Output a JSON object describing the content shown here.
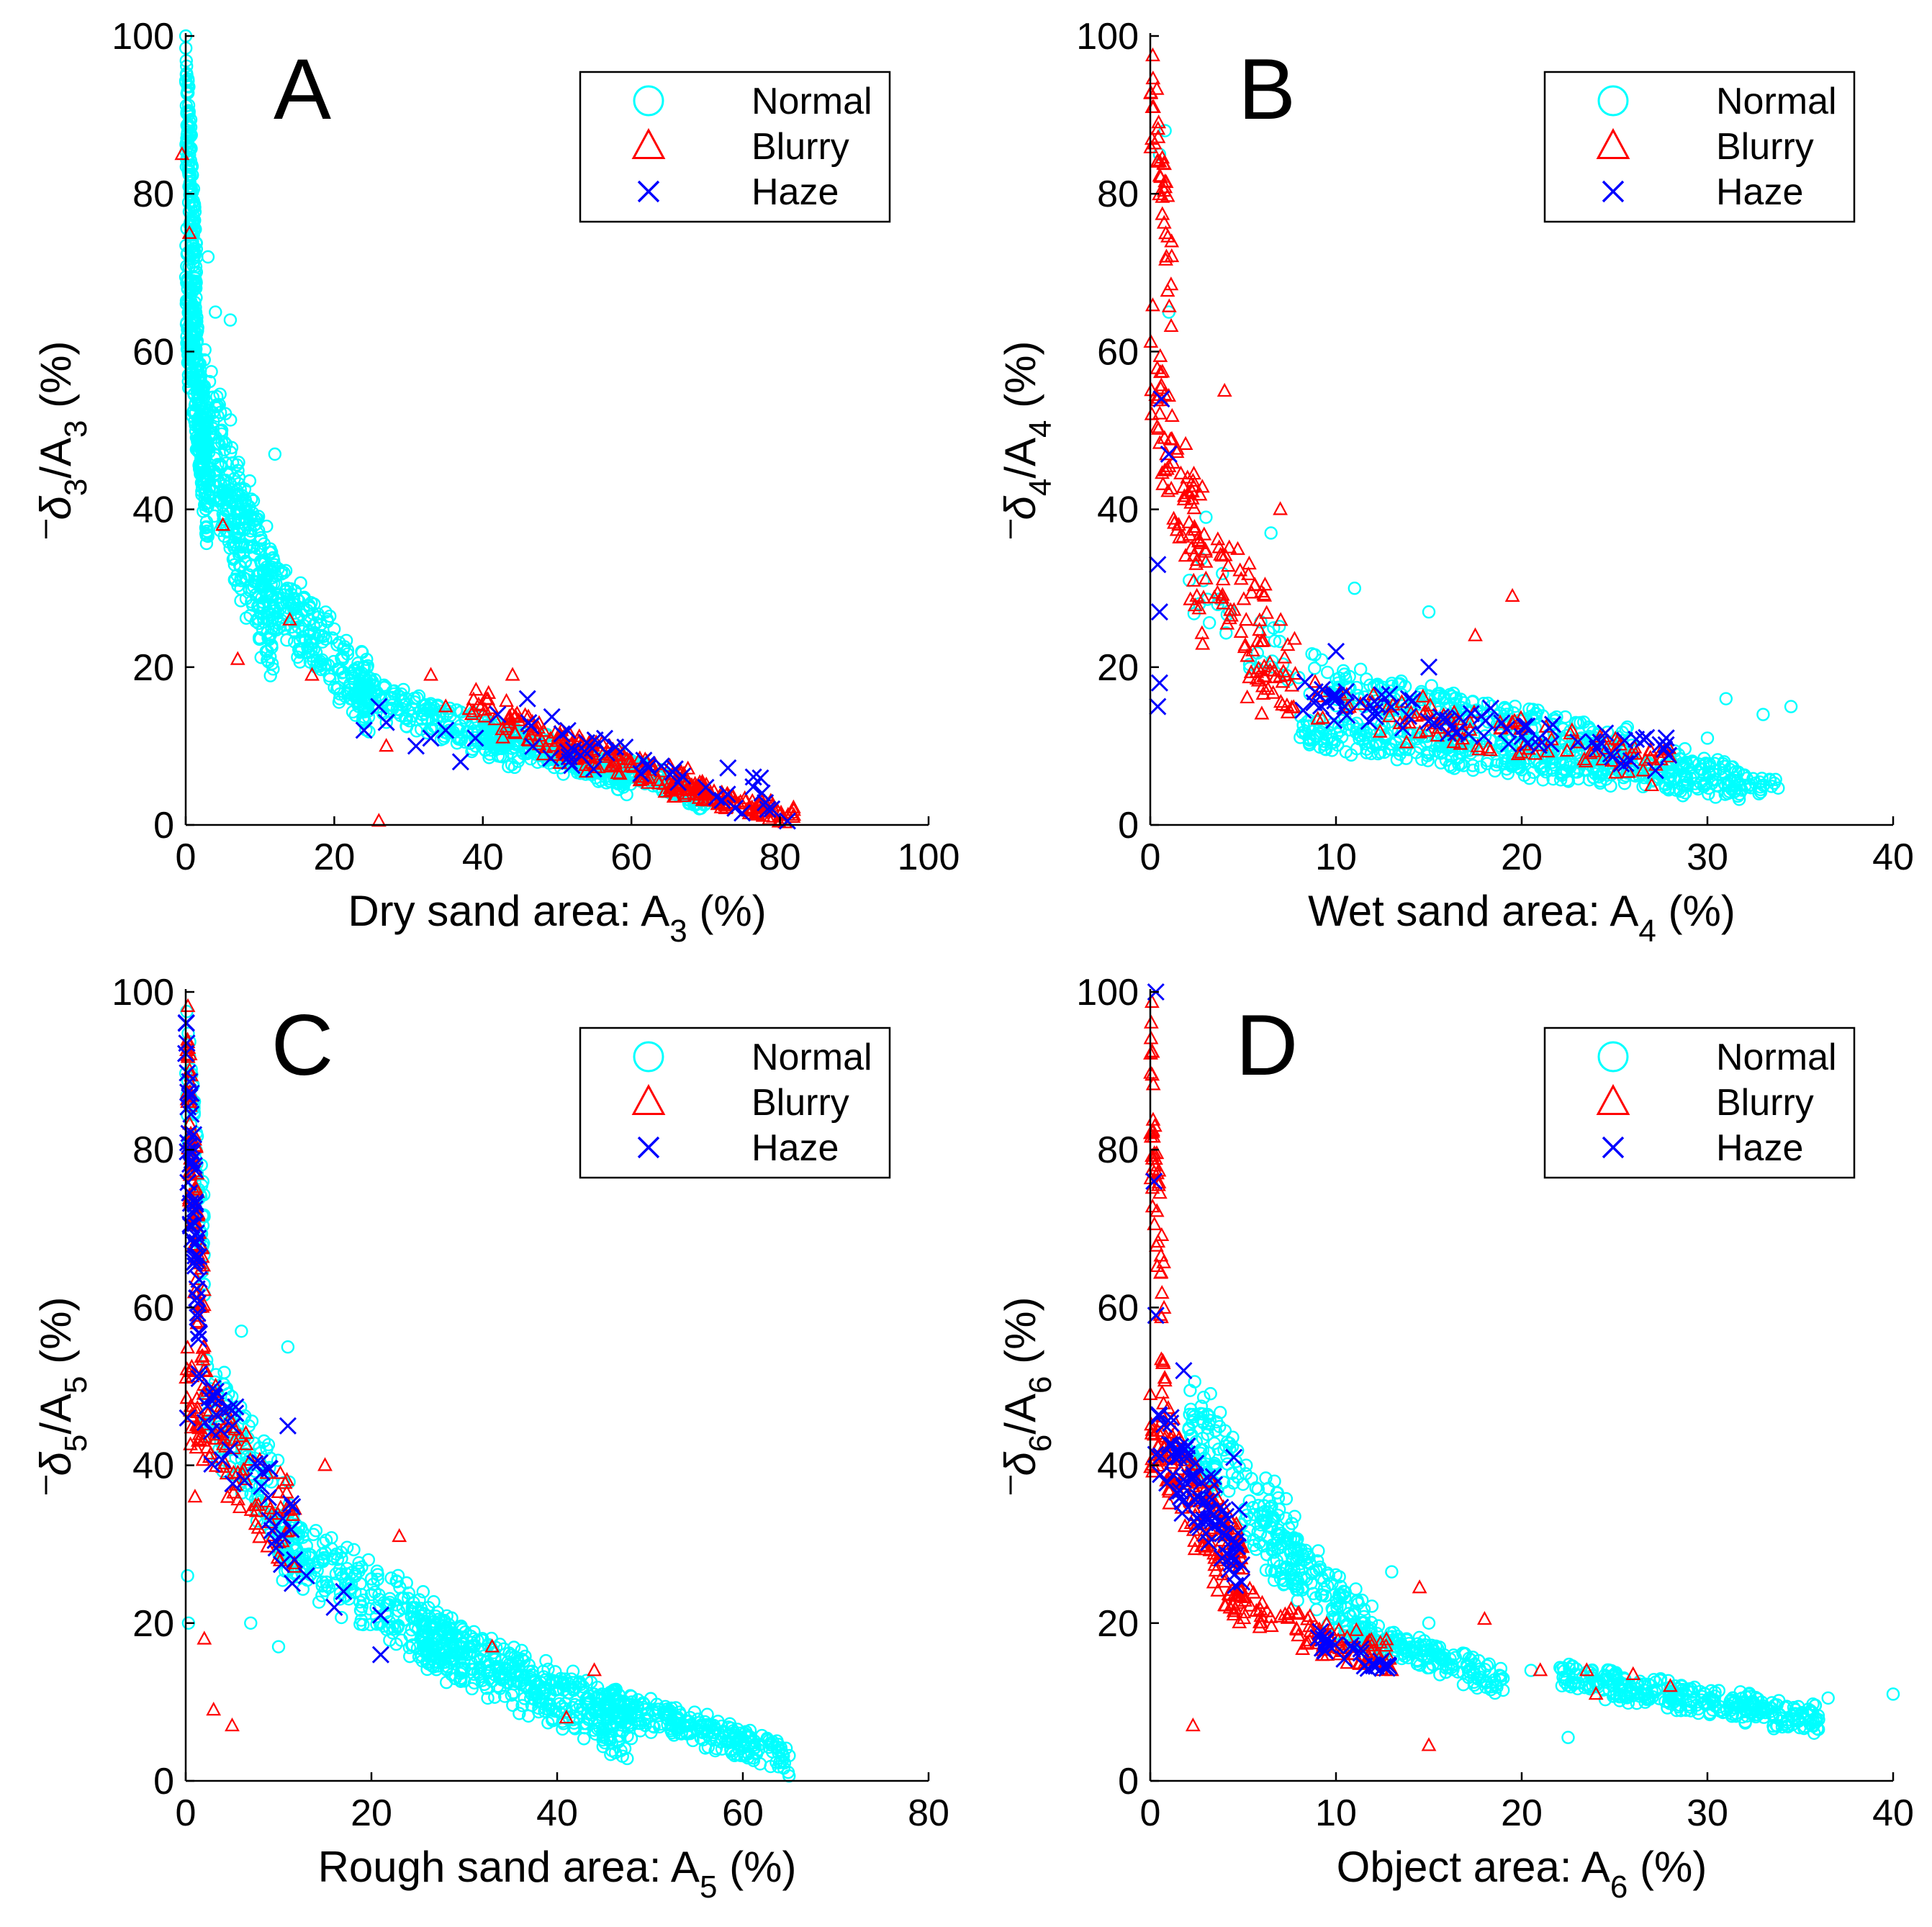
{
  "colors": {
    "normal": "#00ffff",
    "blurry": "#ff0000",
    "haze": "#0000ff",
    "axis": "#000000",
    "background": "#ffffff"
  },
  "legend_labels": [
    "Normal",
    "Blurry",
    "Haze"
  ],
  "chart_data": [
    {
      "panel": "A",
      "type": "scatter",
      "xlabel": {
        "prefix": "Dry sand area: A",
        "sub": "3",
        "suffix": " (%)"
      },
      "ylabel": {
        "sym": "δ",
        "ysub": "3",
        "mid": "/A",
        "sub": "3",
        "suffix": " (%)"
      },
      "xlim": [
        0,
        100
      ],
      "ylim": [
        0,
        100
      ],
      "xticks": [
        0,
        20,
        40,
        60,
        80,
        100
      ],
      "yticks": [
        0,
        20,
        40,
        60,
        80,
        100
      ],
      "legend": "top-right",
      "series": [
        {
          "name": "Normal",
          "marker": "circle",
          "clusters": [
            {
              "x": [
                0,
                1.5
              ],
              "y": [
                60,
                100
              ],
              "n": 150
            },
            {
              "x": [
                0,
                3
              ],
              "y": [
                35,
                75
              ],
              "n": 260
            },
            {
              "x": [
                2,
                12
              ],
              "y": [
                18,
                60
              ],
              "n": 300
            },
            {
              "x": [
                10,
                25
              ],
              "y": [
                12,
                35
              ],
              "n": 220
            },
            {
              "x": [
                22,
                45
              ],
              "y": [
                7,
                20
              ],
              "n": 200
            },
            {
              "x": [
                40,
                60
              ],
              "y": [
                4,
                14
              ],
              "n": 220
            },
            {
              "x": [
                58,
                70
              ],
              "y": [
                2,
                9
              ],
              "n": 120
            }
          ],
          "points": [
            [
              4,
              65
            ],
            [
              12,
              47
            ],
            [
              15,
              26
            ],
            [
              3,
              72
            ],
            [
              6,
              64
            ]
          ]
        },
        {
          "name": "Blurry",
          "marker": "triangle",
          "clusters": [
            {
              "x": [
                38,
                55
              ],
              "y": [
                6,
                18
              ],
              "n": 70
            },
            {
              "x": [
                50,
                70
              ],
              "y": [
                3,
                12
              ],
              "n": 110
            },
            {
              "x": [
                65,
                82
              ],
              "y": [
                0,
                6
              ],
              "n": 100
            }
          ],
          "points": [
            [
              -0.5,
              85
            ],
            [
              0.5,
              75
            ],
            [
              5,
              38
            ],
            [
              14,
              26
            ],
            [
              7,
              21
            ],
            [
              17,
              19
            ],
            [
              26,
              0.5
            ],
            [
              27,
              10
            ],
            [
              33,
              19
            ],
            [
              35,
              15
            ],
            [
              44,
              19
            ]
          ]
        },
        {
          "name": "Haze",
          "marker": "x",
          "clusters": [
            {
              "x": [
                45,
                80
              ],
              "y": [
                1,
                14
              ],
              "n": 45
            }
          ],
          "points": [
            [
              24,
              12
            ],
            [
              26,
              15
            ],
            [
              27,
              13
            ],
            [
              31,
              10
            ],
            [
              33,
              11
            ],
            [
              35,
              12
            ],
            [
              37,
              8
            ],
            [
              39,
              11
            ],
            [
              42,
              14
            ],
            [
              46,
              16
            ],
            [
              81,
              0.5
            ]
          ]
        }
      ]
    },
    {
      "panel": "B",
      "type": "scatter",
      "xlabel": {
        "prefix": "Wet sand area: A",
        "sub": "4",
        "suffix": " (%)"
      },
      "ylabel": {
        "sym": "δ",
        "ysub": "4",
        "mid": "/A",
        "sub": "4",
        "suffix": " (%)"
      },
      "xlim": [
        0,
        40
      ],
      "ylim": [
        0,
        100
      ],
      "xticks": [
        0,
        10,
        20,
        30,
        40
      ],
      "yticks": [
        0,
        20,
        40,
        60,
        80,
        100
      ],
      "legend": "top-right",
      "series": [
        {
          "name": "Normal",
          "marker": "circle",
          "clusters": [
            {
              "x": [
                8,
                32
              ],
              "y": [
                3,
                14
              ],
              "n": 420
            },
            {
              "x": [
                10,
                26
              ],
              "y": [
                8,
                20
              ],
              "n": 220
            },
            {
              "x": [
                2,
                10
              ],
              "y": [
                12,
                35
              ],
              "n": 40
            },
            {
              "x": [
                28,
                34
              ],
              "y": [
                3,
                10
              ],
              "n": 60
            }
          ],
          "points": [
            [
              0.5,
              85
            ],
            [
              0.8,
              88
            ],
            [
              1.0,
              65
            ],
            [
              3,
              39
            ],
            [
              6.5,
              37
            ],
            [
              11,
              30
            ],
            [
              15,
              27
            ],
            [
              34.5,
              15
            ],
            [
              33,
              14
            ],
            [
              31,
              16
            ],
            [
              30,
              11
            ]
          ]
        },
        {
          "name": "Blurry",
          "marker": "triangle",
          "clusters": [
            {
              "x": [
                0,
                1.2
              ],
              "y": [
                60,
                100
              ],
              "n": 40
            },
            {
              "x": [
                0,
                3
              ],
              "y": [
                20,
                65
              ],
              "n": 70
            },
            {
              "x": [
                2,
                8
              ],
              "y": [
                10,
                45
              ],
              "n": 80
            },
            {
              "x": [
                5,
                28
              ],
              "y": [
                5,
                20
              ],
              "n": 120
            }
          ],
          "points": [
            [
              19.5,
              29
            ],
            [
              4,
              55
            ],
            [
              7,
              40
            ],
            [
              17.5,
              24
            ],
            [
              27,
              5
            ]
          ]
        },
        {
          "name": "Haze",
          "marker": "x",
          "clusters": [
            {
              "x": [
                8,
                28
              ],
              "y": [
                7,
                18
              ],
              "n": 75
            }
          ],
          "points": [
            [
              0.6,
              54
            ],
            [
              1.0,
              47
            ],
            [
              0.4,
              33
            ],
            [
              0.5,
              27
            ],
            [
              0.5,
              18
            ],
            [
              0.4,
              15
            ],
            [
              10,
              22
            ],
            [
              15,
              20
            ]
          ]
        }
      ]
    },
    {
      "panel": "C",
      "type": "scatter",
      "xlabel": {
        "prefix": "Rough sand area: A",
        "sub": "5",
        "suffix": " (%)"
      },
      "ylabel": {
        "sym": "δ",
        "ysub": "5",
        "mid": "/A",
        "sub": "5",
        "suffix": " (%)"
      },
      "xlim": [
        0,
        80
      ],
      "ylim": [
        0,
        100
      ],
      "xticks": [
        0,
        20,
        40,
        60,
        80
      ],
      "yticks": [
        0,
        20,
        40,
        60,
        80,
        100
      ],
      "legend": "top-right",
      "series": [
        {
          "name": "Normal",
          "marker": "circle",
          "clusters": [
            {
              "x": [
                0,
                2
              ],
              "y": [
                60,
                100
              ],
              "n": 60
            },
            {
              "x": [
                2,
                12
              ],
              "y": [
                25,
                55
              ],
              "n": 130
            },
            {
              "x": [
                10,
                30
              ],
              "y": [
                12,
                35
              ],
              "n": 260
            },
            {
              "x": [
                25,
                48
              ],
              "y": [
                3,
                22
              ],
              "n": 420
            },
            {
              "x": [
                45,
                65
              ],
              "y": [
                1,
                12
              ],
              "n": 240
            }
          ],
          "points": [
            [
              0.2,
              26
            ],
            [
              0.3,
              20
            ],
            [
              6,
              57
            ],
            [
              11,
              55
            ],
            [
              7,
              20
            ],
            [
              10,
              17
            ]
          ]
        },
        {
          "name": "Blurry",
          "marker": "triangle",
          "clusters": [
            {
              "x": [
                0,
                2
              ],
              "y": [
                45,
                100
              ],
              "n": 90
            },
            {
              "x": [
                0,
                12
              ],
              "y": [
                25,
                55
              ],
              "n": 110
            }
          ],
          "points": [
            [
              2,
              18
            ],
            [
              3,
              9
            ],
            [
              5,
              7
            ],
            [
              1,
              36
            ],
            [
              33,
              17
            ],
            [
              44,
              14
            ],
            [
              41,
              8
            ],
            [
              23,
              31
            ],
            [
              15,
              40
            ]
          ]
        },
        {
          "name": "Haze",
          "marker": "x",
          "clusters": [
            {
              "x": [
                0,
                1.5
              ],
              "y": [
                50,
                100
              ],
              "n": 55
            },
            {
              "x": [
                2,
                12
              ],
              "y": [
                25,
                52
              ],
              "n": 40
            }
          ],
          "points": [
            [
              0.2,
              46
            ],
            [
              16,
              22
            ],
            [
              17,
              24
            ],
            [
              21,
              21
            ],
            [
              21,
              16
            ],
            [
              13,
              26
            ],
            [
              11,
              45
            ]
          ]
        }
      ]
    },
    {
      "panel": "D",
      "type": "scatter",
      "xlabel": {
        "prefix": "Object area: A",
        "sub": "6",
        "suffix": " (%)"
      },
      "ylabel": {
        "sym": "δ",
        "ysub": "6",
        "mid": "/A",
        "sub": "6",
        "suffix": " (%)"
      },
      "xlim": [
        0,
        40
      ],
      "ylim": [
        0,
        100
      ],
      "xticks": [
        0,
        10,
        20,
        30,
        40
      ],
      "yticks": [
        0,
        20,
        40,
        60,
        80,
        100
      ],
      "legend": "top-right",
      "series": [
        {
          "name": "Normal",
          "marker": "circle",
          "clusters": [
            {
              "x": [
                2,
                8
              ],
              "y": [
                22,
                52
              ],
              "n": 160
            },
            {
              "x": [
                6,
                12
              ],
              "y": [
                15,
                35
              ],
              "n": 130
            },
            {
              "x": [
                10,
                19
              ],
              "y": [
                11,
                21
              ],
              "n": 180
            },
            {
              "x": [
                22,
                36
              ],
              "y": [
                6,
                15
              ],
              "n": 320
            }
          ],
          "points": [
            [
              40,
              11
            ],
            [
              36.5,
              10.5
            ],
            [
              22.5,
              5.5
            ],
            [
              13,
              26.5
            ],
            [
              15,
              20
            ],
            [
              19,
              13
            ],
            [
              20.5,
              14
            ]
          ]
        },
        {
          "name": "Blurry",
          "marker": "triangle",
          "clusters": [
            {
              "x": [
                0,
                0.8
              ],
              "y": [
                40,
                100
              ],
              "n": 55
            },
            {
              "x": [
                0,
                5
              ],
              "y": [
                20,
                50
              ],
              "n": 160
            },
            {
              "x": [
                4,
                13
              ],
              "y": [
                13,
                25
              ],
              "n": 100
            }
          ],
          "points": [
            [
              2.3,
              7
            ],
            [
              15,
              4.5
            ],
            [
              14.5,
              24.5
            ],
            [
              18,
              20.5
            ],
            [
              21,
              14
            ],
            [
              23.5,
              14
            ],
            [
              26,
              13.5
            ],
            [
              28,
              12
            ],
            [
              24,
              11
            ],
            [
              13,
              14
            ]
          ]
        },
        {
          "name": "Haze",
          "marker": "x",
          "clusters": [
            {
              "x": [
                0.2,
                5
              ],
              "y": [
                24,
                48
              ],
              "n": 80
            },
            {
              "x": [
                9,
                13
              ],
              "y": [
                13,
                19
              ],
              "n": 25
            }
          ],
          "points": [
            [
              0.3,
              100
            ],
            [
              0.2,
              76
            ],
            [
              0.3,
              59
            ],
            [
              1.8,
              52
            ],
            [
              4.5,
              41
            ]
          ]
        }
      ]
    }
  ]
}
